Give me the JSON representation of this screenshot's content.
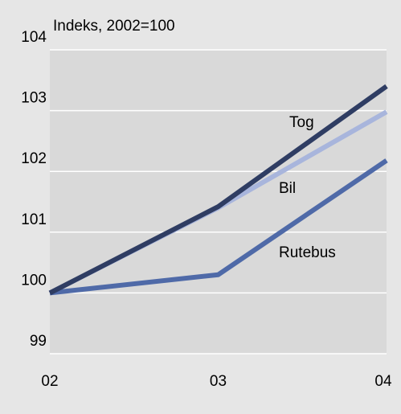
{
  "chart_data": {
    "type": "line",
    "title": "",
    "ylabel": "Indeks, 2002=100",
    "xlabel": "",
    "categories": [
      "02",
      "03",
      "04"
    ],
    "ylim": [
      99,
      104
    ],
    "yticks": [
      99,
      100,
      101,
      102,
      103,
      104
    ],
    "grid": true,
    "legend": "none (direct labels)",
    "series": [
      {
        "name": "Tog",
        "values": [
          100,
          101.42,
          103.4
        ],
        "color": "#2f3d63"
      },
      {
        "name": "Bil",
        "values": [
          100,
          101.4,
          102.98
        ],
        "color": "#a8b5dc"
      },
      {
        "name": "Rutebus",
        "values": [
          100,
          100.3,
          102.18
        ],
        "color": "#4f6aa8"
      }
    ],
    "colors": {
      "background": "#e6e6e6",
      "plot_background": "#d9d9d9",
      "grid": "#ffffff"
    }
  }
}
